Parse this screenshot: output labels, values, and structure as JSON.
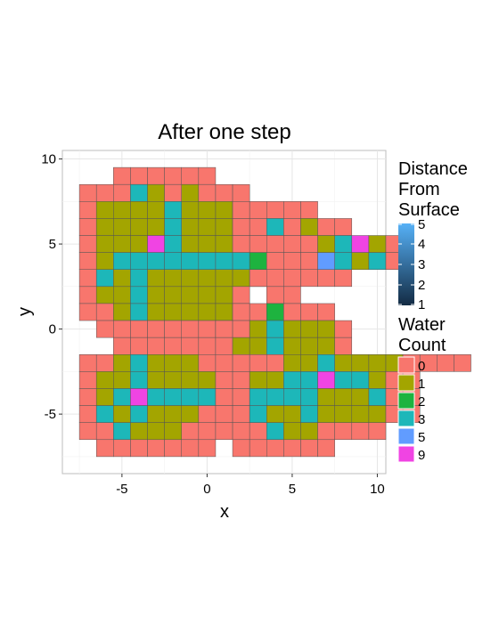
{
  "chart_data": {
    "type": "heatmap",
    "title": "After one step",
    "xlabel": "x",
    "ylabel": "y",
    "xlim": [
      -8.5,
      10.5
    ],
    "ylim": [
      -8.5,
      10.5
    ],
    "x_ticks": [
      -5,
      0,
      5,
      10
    ],
    "y_ticks": [
      -5,
      0,
      5,
      10
    ],
    "x_tick_labels": [
      "-5",
      "0",
      "5",
      "10"
    ],
    "y_tick_labels": [
      "-5",
      "0",
      "5",
      "10"
    ],
    "grid": true,
    "legend_position": "right",
    "color_by": "Water Count",
    "category_colors": {
      "0": "#F8766D",
      "1": "#A3A500",
      "2": "#1EB33F",
      "3": "#1DB7B9",
      "5": "#619CFF",
      "9": "#F044E3"
    },
    "legends": [
      {
        "title_lines": [
          "Distance",
          "From",
          "Surface"
        ],
        "type": "colorbar",
        "min": 1,
        "max": 5,
        "low_color": "#132B43",
        "high_color": "#56B1F7",
        "labels": [
          "5",
          "4",
          "3",
          "2",
          "1"
        ],
        "label_values": [
          5,
          4,
          3,
          2,
          1
        ]
      },
      {
        "title_lines": [
          "Water",
          "Count"
        ],
        "type": "discrete",
        "entries": [
          {
            "label": "0",
            "color": "#F8766D"
          },
          {
            "label": "1",
            "color": "#A3A500"
          },
          {
            "label": "2",
            "color": "#1EB33F"
          },
          {
            "label": "3",
            "color": "#1DB7B9"
          },
          {
            "label": "5",
            "color": "#619CFF"
          },
          {
            "label": "9",
            "color": "#F044E3"
          }
        ]
      }
    ],
    "rows": [
      {
        "y": 9,
        "x_start": -5,
        "values": [
          0,
          0,
          0,
          0,
          0,
          0
        ]
      },
      {
        "y": 8,
        "x_start": -7,
        "values": [
          0,
          0,
          0,
          3,
          1,
          0,
          1,
          0,
          0,
          0
        ]
      },
      {
        "y": 7,
        "x_start": -7,
        "values": [
          0,
          1,
          1,
          1,
          1,
          3,
          1,
          1,
          1,
          0
        ]
      },
      {
        "y": 7,
        "x_start": 2,
        "values": [
          0,
          0,
          0,
          0,
          0
        ]
      },
      {
        "y": 6,
        "x_start": -7,
        "values": [
          0,
          1,
          1,
          1,
          1,
          3,
          1,
          1,
          1,
          0
        ]
      },
      {
        "y": 6,
        "x_start": 2,
        "values": [
          0,
          0,
          3,
          0,
          1,
          0,
          0
        ]
      },
      {
        "y": 5,
        "x_start": -7,
        "values": [
          0,
          1,
          1,
          1,
          9,
          3,
          1,
          1,
          1,
          0,
          0,
          0,
          0,
          0,
          1,
          3,
          9,
          1,
          0
        ]
      },
      {
        "y": 4,
        "x_start": -7,
        "values": [
          0,
          1,
          3,
          3,
          3,
          3,
          3,
          3,
          3,
          3,
          2,
          0,
          0,
          0,
          5,
          3,
          1,
          3,
          0
        ]
      },
      {
        "y": 3,
        "x_start": -7,
        "values": [
          0,
          3,
          1,
          3,
          1,
          1,
          1,
          1,
          1,
          1,
          0
        ]
      },
      {
        "y": 3,
        "x_start": 3,
        "values": [
          0,
          0,
          0,
          0,
          0,
          0
        ]
      },
      {
        "y": 2,
        "x_start": -7,
        "values": [
          0,
          1,
          1,
          3,
          1,
          1,
          1,
          1,
          1,
          0
        ]
      },
      {
        "y": 2,
        "x_start": 4,
        "values": [
          0,
          0
        ]
      },
      {
        "y": 1,
        "x_start": -7,
        "values": [
          0,
          0,
          1,
          3,
          1,
          1,
          1,
          1,
          1,
          0
        ]
      },
      {
        "y": 1,
        "x_start": 2,
        "values": [
          0,
          0,
          2,
          0,
          0,
          0
        ]
      },
      {
        "y": 0,
        "x_start": -6,
        "values": [
          0,
          0,
          0,
          0,
          0,
          0,
          0,
          0
        ]
      },
      {
        "y": 0,
        "x_start": 1,
        "values": [
          0,
          0,
          1,
          3,
          1,
          1,
          1,
          0
        ]
      },
      {
        "y": -1,
        "x_start": -5,
        "values": [
          0,
          0,
          0,
          0,
          0
        ]
      },
      {
        "y": -1,
        "x_start": 0,
        "values": [
          0,
          0,
          1,
          1,
          3,
          1,
          1,
          1,
          0
        ]
      },
      {
        "y": -2,
        "x_start": -7,
        "values": [
          0,
          0,
          1,
          3,
          1,
          1,
          1,
          0,
          0,
          0,
          0,
          0,
          1,
          1,
          3,
          1,
          1,
          1,
          1,
          0,
          0,
          0,
          0
        ]
      },
      {
        "y": -3,
        "x_start": -7,
        "values": [
          0,
          1,
          1,
          3,
          1,
          1,
          1,
          1,
          0,
          0,
          1,
          1,
          3,
          3,
          9,
          3,
          3,
          1,
          0,
          0
        ]
      },
      {
        "y": -3,
        "x_start": 13,
        "values": []
      },
      {
        "y": -4,
        "x_start": -7,
        "values": [
          0,
          1,
          3,
          9,
          3,
          3,
          3,
          3,
          0,
          0,
          3,
          3,
          3,
          3,
          1,
          1,
          1,
          3,
          0,
          0
        ]
      },
      {
        "y": -5,
        "x_start": -7,
        "values": [
          0,
          3,
          1,
          3,
          1,
          1,
          1,
          0,
          0,
          0,
          3,
          1,
          1,
          3,
          1,
          1,
          1,
          1,
          0,
          0
        ]
      },
      {
        "y": -6,
        "x_start": -7,
        "values": [
          0,
          0,
          3,
          1,
          1,
          1,
          0,
          0,
          0,
          0,
          0,
          3,
          1,
          1,
          0,
          0,
          0,
          0
        ]
      },
      {
        "y": -7,
        "x_start": -6,
        "values": [
          0,
          0,
          0,
          0,
          0,
          0,
          0
        ]
      },
      {
        "y": -7,
        "x_start": 2,
        "values": [
          0,
          0,
          0,
          0,
          0,
          0
        ]
      }
    ]
  }
}
